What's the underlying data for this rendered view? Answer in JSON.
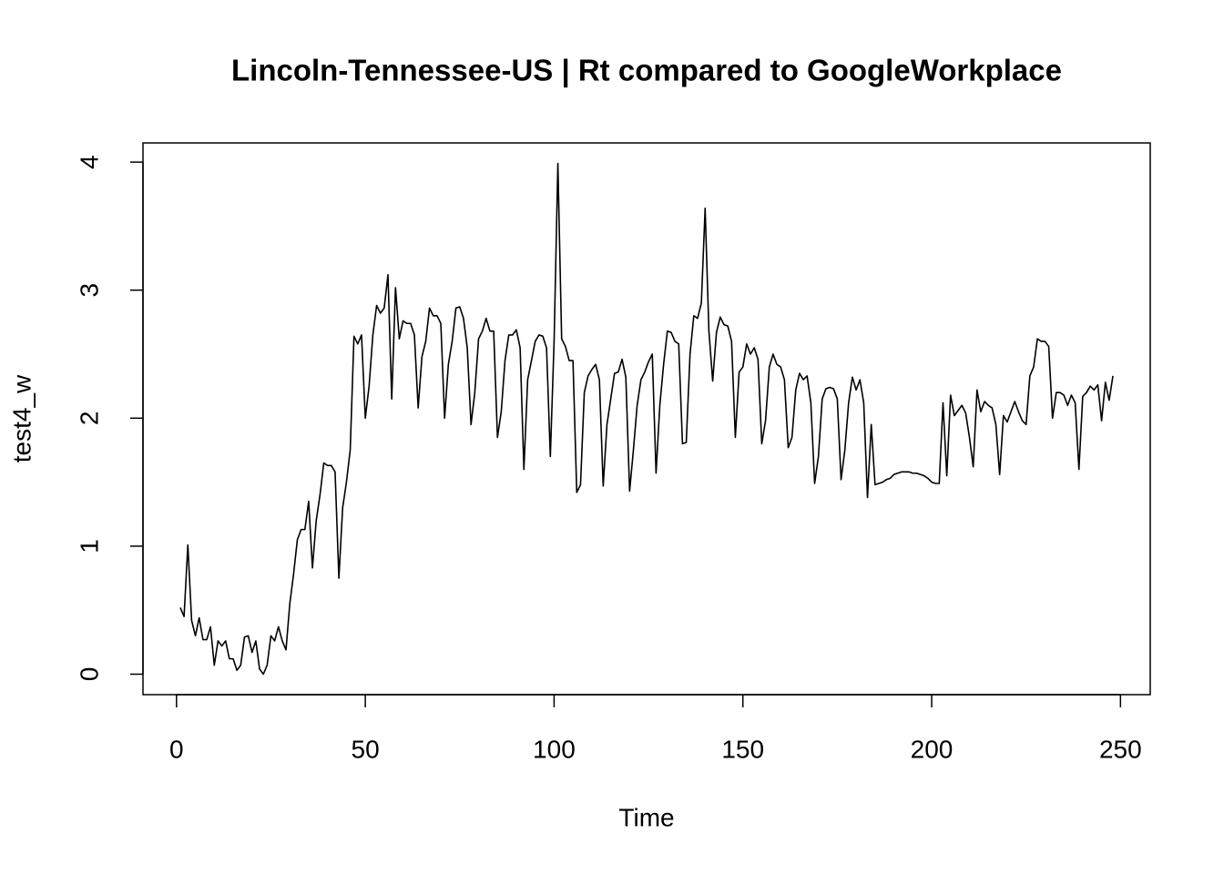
{
  "chart_data": {
    "type": "line",
    "title": "Lincoln-Tennessee-US | Rt compared to GoogleWorkplace",
    "xlabel": "Time",
    "ylabel": "test4_w",
    "color": "#000000",
    "xlim": [
      -8.88,
      257.88
    ],
    "ylim": [
      -0.16,
      4.15
    ],
    "xticks": [
      0,
      50,
      100,
      150,
      200,
      250
    ],
    "yticks": [
      0,
      1,
      2,
      3,
      4
    ],
    "x": [
      1,
      2,
      3,
      4,
      5,
      6,
      7,
      8,
      9,
      10,
      11,
      12,
      13,
      14,
      15,
      16,
      17,
      18,
      19,
      20,
      21,
      22,
      23,
      24,
      25,
      26,
      27,
      28,
      29,
      30,
      31,
      32,
      33,
      34,
      35,
      36,
      37,
      38,
      39,
      40,
      41,
      42,
      43,
      44,
      45,
      46,
      47,
      48,
      49,
      50,
      51,
      52,
      53,
      54,
      55,
      56,
      57,
      58,
      59,
      60,
      61,
      62,
      63,
      64,
      65,
      66,
      67,
      68,
      69,
      70,
      71,
      72,
      73,
      74,
      75,
      76,
      77,
      78,
      79,
      80,
      81,
      82,
      83,
      84,
      85,
      86,
      87,
      88,
      89,
      90,
      91,
      92,
      93,
      94,
      95,
      96,
      97,
      98,
      99,
      100,
      101,
      102,
      103,
      104,
      105,
      106,
      107,
      108,
      109,
      110,
      111,
      112,
      113,
      114,
      115,
      116,
      117,
      118,
      119,
      120,
      121,
      122,
      123,
      124,
      125,
      126,
      127,
      128,
      129,
      130,
      131,
      132,
      133,
      134,
      135,
      136,
      137,
      138,
      139,
      140,
      141,
      142,
      143,
      144,
      145,
      146,
      147,
      148,
      149,
      150,
      151,
      152,
      153,
      154,
      155,
      156,
      157,
      158,
      159,
      160,
      161,
      162,
      163,
      164,
      165,
      166,
      167,
      168,
      169,
      170,
      171,
      172,
      173,
      174,
      175,
      176,
      177,
      178,
      179,
      180,
      181,
      182,
      183,
      184,
      185,
      186,
      187,
      188,
      189,
      190,
      191,
      192,
      193,
      194,
      195,
      196,
      197,
      198,
      199,
      200,
      201,
      202,
      203,
      204,
      205,
      206,
      207,
      208,
      209,
      210,
      211,
      212,
      213,
      214,
      215,
      216,
      217,
      218,
      219,
      220,
      221,
      222,
      223,
      224,
      225,
      226,
      227,
      228,
      229,
      230,
      231,
      232,
      233,
      234,
      235,
      236,
      237,
      238,
      239,
      240,
      241,
      242,
      243,
      244,
      245,
      246,
      247,
      248
    ],
    "values": [
      0.52,
      0.45,
      1.01,
      0.42,
      0.3,
      0.44,
      0.27,
      0.27,
      0.37,
      0.07,
      0.26,
      0.22,
      0.26,
      0.12,
      0.12,
      0.03,
      0.07,
      0.29,
      0.3,
      0.17,
      0.26,
      0.04,
      0.0,
      0.07,
      0.3,
      0.26,
      0.37,
      0.26,
      0.19,
      0.55,
      0.78,
      1.05,
      1.13,
      1.13,
      1.35,
      0.83,
      1.2,
      1.4,
      1.65,
      1.63,
      1.63,
      1.58,
      0.75,
      1.3,
      1.5,
      1.75,
      2.64,
      2.58,
      2.65,
      2.0,
      2.25,
      2.65,
      2.88,
      2.82,
      2.86,
      3.12,
      2.15,
      3.02,
      2.62,
      2.76,
      2.74,
      2.74,
      2.65,
      2.08,
      2.48,
      2.6,
      2.86,
      2.8,
      2.8,
      2.74,
      2.0,
      2.42,
      2.6,
      2.86,
      2.87,
      2.78,
      2.55,
      1.95,
      2.2,
      2.62,
      2.68,
      2.78,
      2.68,
      2.68,
      1.85,
      2.05,
      2.45,
      2.65,
      2.65,
      2.69,
      2.55,
      1.6,
      2.3,
      2.45,
      2.6,
      2.65,
      2.64,
      2.55,
      1.7,
      2.6,
      3.99,
      2.62,
      2.56,
      2.45,
      2.45,
      1.42,
      1.48,
      2.2,
      2.33,
      2.38,
      2.42,
      2.3,
      1.47,
      1.95,
      2.15,
      2.35,
      2.36,
      2.46,
      2.32,
      1.43,
      1.75,
      2.1,
      2.3,
      2.36,
      2.44,
      2.5,
      1.57,
      2.1,
      2.42,
      2.68,
      2.67,
      2.6,
      2.58,
      1.8,
      1.81,
      2.5,
      2.8,
      2.78,
      2.9,
      3.64,
      2.68,
      2.29,
      2.67,
      2.79,
      2.73,
      2.72,
      2.6,
      1.85,
      2.36,
      2.4,
      2.58,
      2.5,
      2.55,
      2.46,
      1.8,
      1.98,
      2.4,
      2.5,
      2.42,
      2.4,
      2.3,
      1.77,
      1.85,
      2.22,
      2.35,
      2.3,
      2.33,
      2.12,
      1.49,
      1.7,
      2.15,
      2.23,
      2.24,
      2.23,
      2.15,
      1.52,
      1.75,
      2.12,
      2.32,
      2.22,
      2.3,
      2.12,
      1.38,
      1.95,
      1.48,
      1.49,
      1.5,
      1.52,
      1.53,
      1.56,
      1.57,
      1.58,
      1.58,
      1.58,
      1.57,
      1.57,
      1.56,
      1.55,
      1.53,
      1.5,
      1.49,
      1.49,
      2.12,
      1.55,
      2.18,
      2.02,
      2.06,
      2.1,
      2.04,
      1.85,
      1.62,
      2.22,
      2.05,
      2.13,
      2.1,
      2.08,
      1.95,
      1.56,
      2.02,
      1.97,
      2.05,
      2.13,
      2.05,
      1.98,
      1.95,
      2.33,
      2.4,
      2.62,
      2.6,
      2.6,
      2.56,
      2.0,
      2.2,
      2.2,
      2.18,
      2.1,
      2.18,
      2.12,
      1.6,
      2.17,
      2.2,
      2.25,
      2.22,
      2.26,
      1.98,
      2.28,
      2.14,
      2.33
    ]
  }
}
